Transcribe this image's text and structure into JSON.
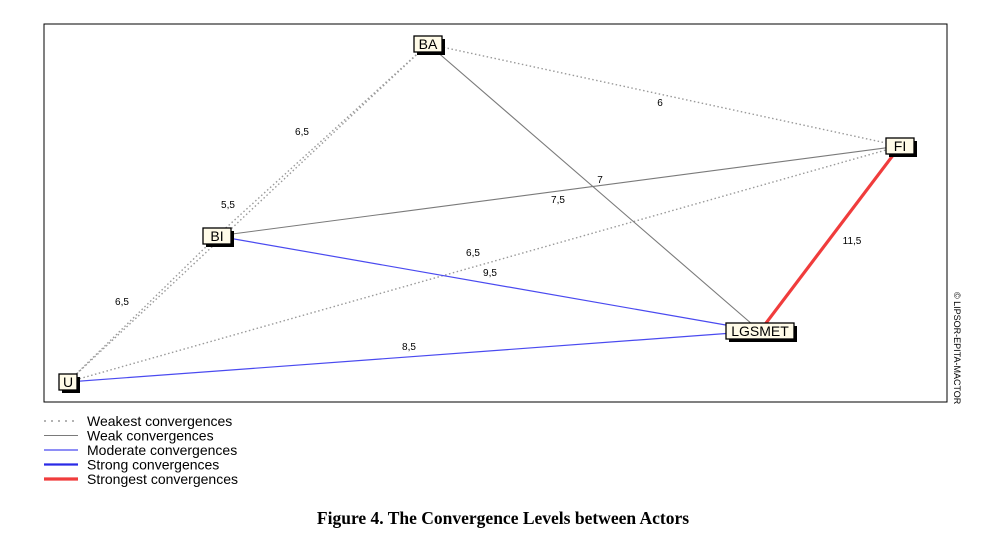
{
  "caption": "Figure 4. The Convergence Levels between Actors",
  "watermark": "© LIPSOR-EPITA-MACTOR",
  "actors": [
    {
      "id": "BA",
      "label": "BA"
    },
    {
      "id": "FI",
      "label": "FI"
    },
    {
      "id": "BI",
      "label": "BI"
    },
    {
      "id": "LGSMET",
      "label": "LGSMET"
    },
    {
      "id": "U",
      "label": "U"
    }
  ],
  "convergences": [
    {
      "from": "BA",
      "to": "FI",
      "value": "6",
      "level": "weakest"
    },
    {
      "from": "BA",
      "to": "BI",
      "value": "6,5",
      "level": "weakest"
    },
    {
      "from": "BA",
      "to": "U",
      "value": "5,5",
      "level": "weakest"
    },
    {
      "from": "BI",
      "to": "U",
      "value": "6,5",
      "level": "weakest"
    },
    {
      "from": "U",
      "to": "FI",
      "value": "6,5",
      "level": "weakest"
    },
    {
      "from": "BA",
      "to": "LGSMET",
      "value": "7",
      "level": "weak"
    },
    {
      "from": "BI",
      "to": "FI",
      "value": "7,5",
      "level": "weak"
    },
    {
      "from": "BI",
      "to": "LGSMET",
      "value": "9,5",
      "level": "moderate"
    },
    {
      "from": "U",
      "to": "LGSMET",
      "value": "8,5",
      "level": "moderate"
    },
    {
      "from": "LGSMET",
      "to": "FI",
      "value": "11,5",
      "level": "strongest"
    }
  ],
  "legend": [
    {
      "level": "weakest",
      "label": "Weakest convergences",
      "color": "#9a9a9a"
    },
    {
      "level": "weak",
      "label": "Weak convergences",
      "color": "#7a7a7a"
    },
    {
      "level": "moderate",
      "label": "Moderate convergences",
      "color": "#4a4af0"
    },
    {
      "level": "strong",
      "label": "Strong convergences",
      "color": "#2a2ae6"
    },
    {
      "level": "strongest",
      "label": "Strongest convergences",
      "color": "#f03c3c"
    }
  ]
}
